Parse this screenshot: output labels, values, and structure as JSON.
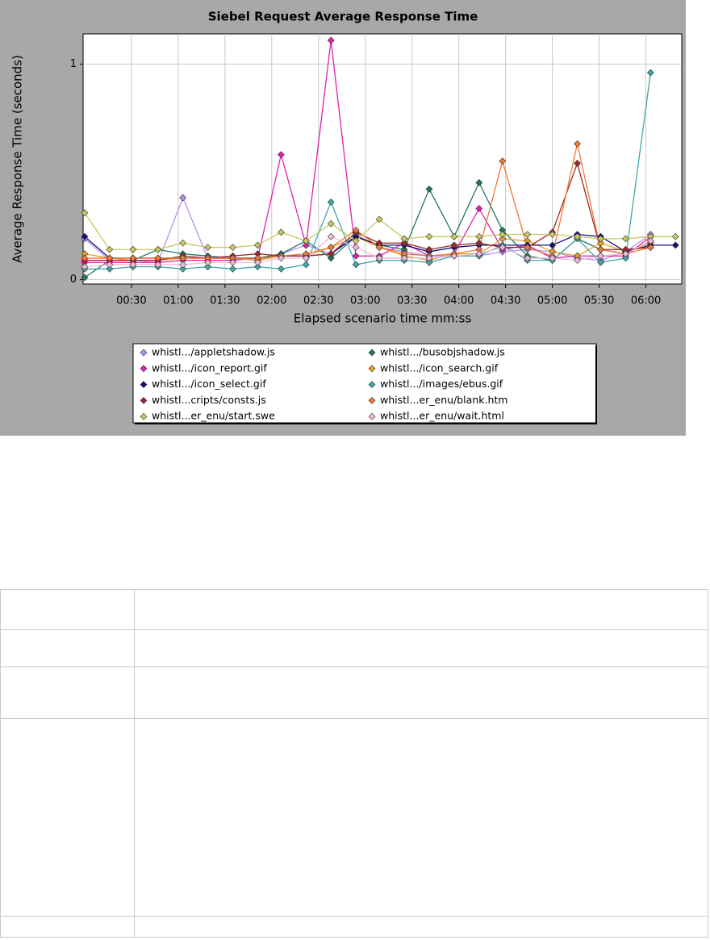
{
  "chart_data": {
    "type": "line",
    "title": "Siebel Request Average Response Time",
    "x_label": "Elapsed scenario time mm:ss",
    "y_label": "Average Response Time (seconds)",
    "x": [
      0,
      16,
      31,
      47,
      63,
      79,
      95,
      111,
      126,
      142,
      158,
      174,
      189,
      205,
      221,
      237,
      253,
      268,
      284,
      300,
      316,
      331,
      347,
      363,
      379
    ],
    "xlim": [
      -1,
      383
    ],
    "xticks": [
      {
        "value": 30,
        "label": "00:30"
      },
      {
        "value": 60,
        "label": "01:00"
      },
      {
        "value": 90,
        "label": "01:30"
      },
      {
        "value": 120,
        "label": "02:00"
      },
      {
        "value": 150,
        "label": "02:30"
      },
      {
        "value": 180,
        "label": "03:00"
      },
      {
        "value": 210,
        "label": "03:30"
      },
      {
        "value": 240,
        "label": "04:00"
      },
      {
        "value": 270,
        "label": "04:30"
      },
      {
        "value": 300,
        "label": "05:00"
      },
      {
        "value": 330,
        "label": "05:30"
      },
      {
        "value": 360,
        "label": "06:00"
      }
    ],
    "ylim": [
      -0.02,
      1.14
    ],
    "yticks": [
      0,
      1
    ],
    "grid": true,
    "series": [
      {
        "name": "whistl.../appletshadow.js",
        "color": "#b890f0",
        "values": [
          0.19,
          0.09,
          0.09,
          0.08,
          0.38,
          0.1,
          0.1,
          0.09,
          0.12,
          0.16,
          0.12,
          0.21,
          0.15,
          0.13,
          0.11,
          0.11,
          0.11,
          0.13,
          0.14,
          0.13,
          0.1,
          0.09,
          0.13,
          0.21,
          null
        ]
      },
      {
        "name": "whistl.../busobjshadow.js",
        "color": "#207860",
        "values": [
          0.01,
          0.09,
          0.09,
          0.14,
          0.12,
          0.11,
          0.1,
          0.1,
          0.12,
          0.18,
          0.1,
          0.2,
          0.16,
          0.14,
          0.42,
          0.2,
          0.45,
          0.23,
          0.11,
          0.09,
          0.19,
          0.14,
          0.12,
          0.18,
          null
        ]
      },
      {
        "name": "whistl.../icon_report.gif",
        "color": "#e020b0",
        "values": [
          0.08,
          0.08,
          0.08,
          0.08,
          0.09,
          0.09,
          0.09,
          0.1,
          0.58,
          0.16,
          1.11,
          0.11,
          0.11,
          0.17,
          0.11,
          0.12,
          0.33,
          0.14,
          0.16,
          0.1,
          0.11,
          0.11,
          0.11,
          0.2,
          null
        ]
      },
      {
        "name": "whistl.../icon_search.gif",
        "color": "#e8a020",
        "values": [
          0.12,
          0.1,
          0.09,
          0.09,
          0.1,
          0.1,
          0.1,
          0.09,
          0.11,
          0.11,
          0.15,
          0.2,
          0.15,
          0.11,
          0.09,
          0.12,
          0.12,
          0.19,
          0.18,
          0.13,
          0.11,
          0.17,
          0.13,
          0.17,
          null
        ]
      },
      {
        "name": "whistl.../icon_select.gif",
        "color": "#101080",
        "values": [
          0.2,
          0.1,
          0.1,
          0.1,
          0.1,
          0.1,
          0.1,
          0.1,
          0.11,
          0.11,
          0.12,
          0.2,
          0.16,
          0.16,
          0.13,
          0.15,
          0.16,
          0.16,
          0.16,
          0.16,
          0.21,
          0.2,
          0.13,
          0.16,
          0.16
        ]
      },
      {
        "name": "whistl.../images/ebus.gif",
        "color": "#40a8a8",
        "values": [
          0.05,
          0.05,
          0.06,
          0.06,
          0.05,
          0.06,
          0.05,
          0.06,
          0.05,
          0.07,
          0.36,
          0.07,
          0.09,
          0.09,
          0.08,
          0.11,
          0.11,
          0.16,
          0.09,
          0.09,
          0.19,
          0.08,
          0.1,
          0.96,
          null
        ]
      },
      {
        "name": "whistl...cripts/consts.js",
        "color": "#a02828",
        "values": [
          0.09,
          0.09,
          0.09,
          0.09,
          0.11,
          0.1,
          0.11,
          0.12,
          0.11,
          0.11,
          0.12,
          0.22,
          0.17,
          0.17,
          0.14,
          0.16,
          0.17,
          0.15,
          0.15,
          0.22,
          0.54,
          0.14,
          0.14,
          0.15,
          null
        ]
      },
      {
        "name": "whistl...er_enu/blank.htm",
        "color": "#f07838",
        "values": [
          0.1,
          0.1,
          0.1,
          0.1,
          0.1,
          0.1,
          0.1,
          0.1,
          0.11,
          0.12,
          0.15,
          0.23,
          0.15,
          0.12,
          0.11,
          0.12,
          0.14,
          0.55,
          0.15,
          0.11,
          0.63,
          0.14,
          0.12,
          0.15,
          null
        ]
      },
      {
        "name": "whistl...er_enu/start.swe",
        "color": "#c8c860",
        "values": [
          0.31,
          0.14,
          0.14,
          0.14,
          0.17,
          0.15,
          0.15,
          0.16,
          0.22,
          0.18,
          0.26,
          0.18,
          0.28,
          0.19,
          0.2,
          0.2,
          0.2,
          0.21,
          0.21,
          0.21,
          0.2,
          0.19,
          0.19,
          0.2,
          0.2
        ]
      },
      {
        "name": "whistl...er_enu/wait.html",
        "color": "#f0b8d8",
        "values": [
          0.06,
          0.07,
          0.07,
          0.07,
          0.07,
          0.08,
          0.08,
          0.08,
          0.1,
          0.1,
          0.2,
          0.15,
          0.1,
          0.1,
          0.1,
          0.11,
          0.12,
          0.15,
          0.1,
          0.1,
          0.09,
          0.11,
          0.12,
          0.18,
          null
        ]
      }
    ]
  }
}
